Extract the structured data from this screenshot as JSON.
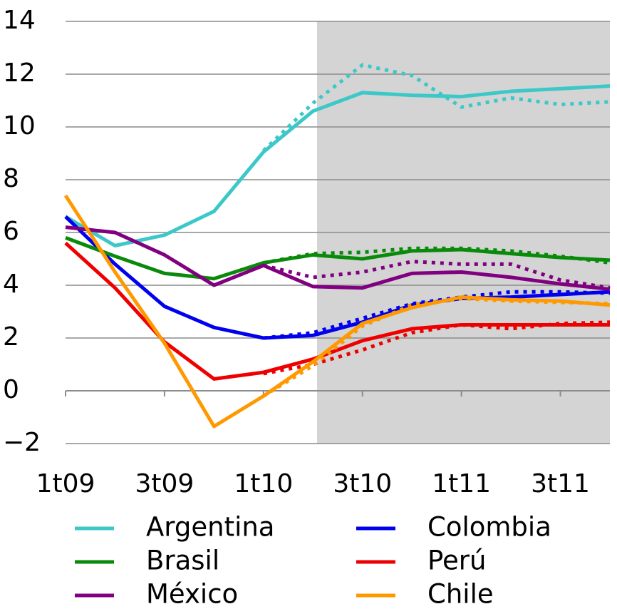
{
  "chart_data": {
    "type": "line",
    "categories": [
      "1t09",
      null,
      "3t09",
      null,
      "1t10",
      null,
      "3t10",
      null,
      "1t11",
      null,
      "3t11",
      null
    ],
    "ylim": [
      -2,
      14
    ],
    "yticks": [
      {
        "value": -2,
        "label": "−2"
      },
      0,
      2,
      4,
      6,
      8,
      10,
      12,
      14
    ],
    "grid": true,
    "series": [
      {
        "name": "Argentina",
        "color": "#3cc8c8",
        "values": [
          6.6,
          5.5,
          5.9,
          6.8,
          9.05,
          10.6,
          11.3,
          11.2,
          11.15,
          11.35,
          11.45,
          11.55
        ],
        "previous_values": [
          null,
          null,
          null,
          null,
          9.1,
          10.9,
          12.35,
          11.95,
          10.75,
          11.1,
          10.85,
          10.95
        ]
      },
      {
        "name": "Colombia",
        "color": "#0000ee",
        "values": [
          6.6,
          4.8,
          3.2,
          2.4,
          2.0,
          2.1,
          2.6,
          3.25,
          3.5,
          3.55,
          3.65,
          3.75
        ],
        "previous_values": [
          null,
          null,
          null,
          null,
          2.0,
          2.2,
          2.75,
          3.3,
          3.55,
          3.75,
          3.75,
          3.7
        ]
      },
      {
        "name": "Brasil",
        "color": "#0a8a0a",
        "values": [
          5.8,
          5.1,
          4.45,
          4.25,
          4.85,
          5.15,
          5.0,
          5.3,
          5.35,
          5.2,
          5.05,
          4.95
        ],
        "previous_values": [
          null,
          null,
          null,
          null,
          4.85,
          5.2,
          5.25,
          5.4,
          5.4,
          5.3,
          5.1,
          4.85
        ]
      },
      {
        "name": "Perú",
        "color": "#ee0000",
        "values": [
          5.6,
          3.9,
          1.85,
          0.45,
          0.7,
          1.2,
          1.9,
          2.35,
          2.5,
          2.5,
          2.5,
          2.5
        ],
        "previous_values": [
          null,
          null,
          null,
          null,
          0.65,
          1.0,
          1.55,
          2.2,
          2.5,
          2.35,
          2.55,
          2.6
        ]
      },
      {
        "name": "México",
        "color": "#800080",
        "values": [
          6.2,
          6.0,
          5.15,
          4.0,
          4.75,
          3.95,
          3.9,
          4.45,
          4.5,
          4.3,
          4.05,
          3.85
        ],
        "previous_values": [
          null,
          null,
          null,
          null,
          4.75,
          4.3,
          4.5,
          4.9,
          4.8,
          4.8,
          4.2,
          3.9
        ]
      },
      {
        "name": "Chile",
        "color": "#ff9900",
        "values": [
          7.4,
          4.5,
          1.8,
          -1.35,
          -0.2,
          1.1,
          2.55,
          3.15,
          3.55,
          3.45,
          3.4,
          3.25
        ],
        "previous_values": [
          null,
          null,
          null,
          null,
          -0.2,
          0.95,
          2.45,
          3.25,
          3.5,
          3.4,
          3.35,
          3.3
        ]
      }
    ]
  }
}
